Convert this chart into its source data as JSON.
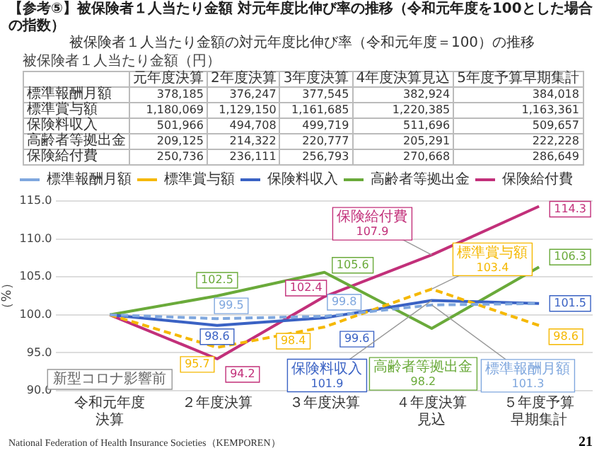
{
  "chart_data": [
    {
      "type": "line",
      "title": "【参考⑤】被保険者１人当たり金額 対元年度比伸び率の推移（令和元年度を100とした場合の指数）",
      "subtitle": "被保険者１人当たり金額の対元年度比伸び率（令和元年度＝100）の推移",
      "ylabel": "（%）",
      "categories": [
        "令和元年度決算",
        "２年度決算",
        "３年度決算",
        "４年度決算見込",
        "５年度予算早期集計"
      ],
      "series": [
        {
          "name": "標準報酬月額",
          "color": "#7fa7de",
          "line_style": "dashed",
          "values": [
            100,
            99.5,
            99.8,
            101.3,
            101.5
          ],
          "value_labels": [
            null,
            "99.5",
            "99.8",
            "標準報酬月額\n101.3",
            null
          ]
        },
        {
          "name": "標準賞与額",
          "color": "#f5b800",
          "line_style": "dashed",
          "values": [
            100,
            95.7,
            98.4,
            103.4,
            98.6
          ],
          "value_labels": [
            null,
            "95.7",
            "98.4",
            "標準賞与額\n103.4",
            "98.6"
          ]
        },
        {
          "name": "保険料収入",
          "color": "#3a62c4",
          "line_style": "solid",
          "values": [
            100,
            98.6,
            99.6,
            101.9,
            101.5
          ],
          "value_labels": [
            null,
            "98.6",
            "99.6",
            "保険料収入\n101.9",
            "101.5"
          ]
        },
        {
          "name": "高齢者等拠出金",
          "color": "#6aaa3a",
          "line_style": "solid",
          "values": [
            100,
            102.5,
            105.6,
            98.2,
            106.3
          ],
          "value_labels": [
            null,
            "102.5",
            "105.6",
            "高齢者等拠出金\n98.2",
            "106.3"
          ]
        },
        {
          "name": "保険給付費",
          "color": "#c2307a",
          "line_style": "solid",
          "values": [
            100,
            94.2,
            102.4,
            107.9,
            114.3
          ],
          "value_labels": [
            null,
            "94.2",
            "102.4",
            "保険給付費\n107.9",
            "114.3"
          ]
        }
      ],
      "ylim": [
        90,
        115
      ],
      "yticks": [
        {
          "value": 90,
          "label": "90.0"
        },
        {
          "value": 95,
          "label": "95.0"
        },
        {
          "value": 100,
          "label": "100.0"
        },
        {
          "value": 105,
          "label": "105.0"
        },
        {
          "value": 110,
          "label": "110.0"
        },
        {
          "value": 115,
          "label": "115.0"
        }
      ],
      "grid": "y",
      "legend": "top",
      "marker": "none",
      "annotations": [
        "新型コロナ影響前",
        "National Federation of Health Insurance Societies（KEMPOREN）",
        "21"
      ]
    },
    {
      "type": "other",
      "title": "被保険者１人当たり金額（円）",
      "categories": [
        "元年度決算",
        "2年度決算",
        "3年度決算",
        "4年度決算見込",
        "5年度予算早期集計"
      ],
      "y_categories": [
        "標準報酬月額",
        "標準賞与額",
        "保険料収入",
        "高齢者等拠出金",
        "保険給付費"
      ],
      "cell_labels": [
        [
          "378,185",
          "376,247",
          "377,545",
          "382,924",
          "384,018"
        ],
        [
          "1,180,069",
          "1,129,150",
          "1,161,685",
          "1,220,385",
          "1,163,361"
        ],
        [
          "501,966",
          "494,708",
          "499,719",
          "511,696",
          "509,657"
        ],
        [
          "209,125",
          "214,322",
          "220,777",
          "205,291",
          "222,228"
        ],
        [
          "250,736",
          "236,111",
          "256,793",
          "270,668",
          "286,649"
        ]
      ]
    }
  ]
}
